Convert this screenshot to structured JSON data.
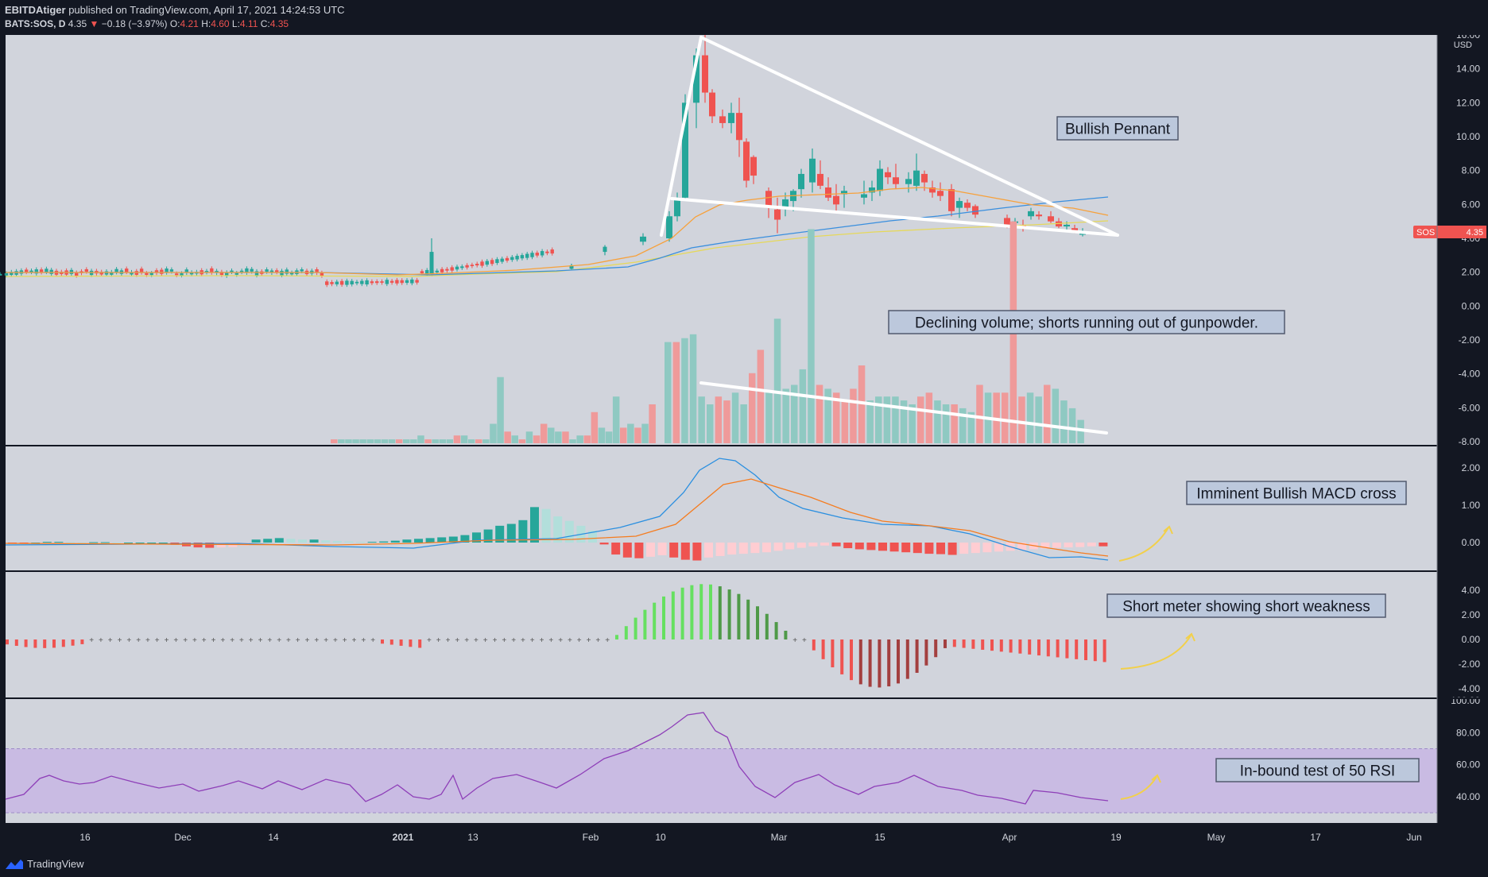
{
  "header": {
    "author": "EBITDAtiger",
    "published": "published on TradingView.com, April 17, 2021 14:24:53 UTC",
    "symbol_line": "BATS:SOS, D",
    "last": "4.35",
    "change": "−0.18 (−3.97%)",
    "o_label": "O:",
    "o": "4.21",
    "h_label": "H:",
    "h": "4.60",
    "l_label": "L:",
    "l": "4.11",
    "c_label": "C:",
    "c": "4.35"
  },
  "footer": {
    "brand": "TradingView"
  },
  "price_badge": {
    "symbol": "SOS",
    "value": "4.35"
  },
  "price_axis": {
    "currency": "USD",
    "ticks": [
      "16.00",
      "14.00",
      "12.00",
      "10.00",
      "8.00",
      "6.00",
      "4.00",
      "2.00",
      "0.00",
      "-2.00",
      "-4.00",
      "-6.00",
      "-8.00"
    ]
  },
  "macd_axis": {
    "ticks": [
      "2.00",
      "1.00",
      "0.00"
    ]
  },
  "meter_axis": {
    "ticks": [
      "4.00",
      "2.00",
      "0.00",
      "-2.00",
      "-4.00"
    ]
  },
  "rsi_axis": {
    "ticks": [
      "100.00",
      "80.00",
      "60.00",
      "40.00"
    ]
  },
  "time_axis": {
    "labels": [
      "16",
      "Dec",
      "14",
      "2021",
      "13",
      "Feb",
      "10",
      "Mar",
      "15",
      "Apr",
      "19",
      "May",
      "17",
      "Jun"
    ]
  },
  "annotations": {
    "pennant": "Bullish Pennant",
    "volume": "Declining volume; shorts running out of gunpowder.",
    "macd": "Imminent Bullish MACD cross",
    "meter": "Short meter showing short weakness",
    "rsi": "In-bound test of 50 RSI"
  },
  "colors": {
    "background": "#d1d4dc",
    "up": "#26a69a",
    "down": "#ef5350",
    "ma_fast": "#f7a13b",
    "ma_mid": "#3a8fde",
    "ma_slow": "#e6d85a",
    "macd_line": "#2a8fe0",
    "signal_line": "#f57c1f",
    "rsi_line": "#8e3fb8",
    "rsi_band": "#c9bbe3",
    "arrow": "#f2d04a"
  },
  "chart_data": [
    {
      "type": "candlestick",
      "name": "BATS:SOS, D",
      "ylim": [
        -8,
        16
      ],
      "ohlc_x": [
        "Nov 5",
        "Jan 5",
        "Jan 25",
        "Feb 3",
        "Feb 8",
        "Feb 11",
        "Feb 12",
        "Feb 16",
        "Feb 17",
        "Feb 18",
        "Feb 19",
        "Feb 22",
        "Feb 23",
        "Feb 24",
        "Feb 25",
        "Feb 26",
        "Mar 1",
        "Mar 2",
        "Mar 3",
        "Mar 4",
        "Mar 5",
        "Mar 8",
        "Mar 9",
        "Mar 10",
        "Mar 11",
        "Mar 12",
        "Mar 15",
        "Mar 16",
        "Mar 17",
        "Mar 18",
        "Mar 19",
        "Mar 22",
        "Mar 23",
        "Mar 24",
        "Mar 25",
        "Mar 26",
        "Mar 29",
        "Mar 30",
        "Mar 31",
        "Apr 1",
        "Apr 5",
        "Apr 6",
        "Apr 7",
        "Apr 8",
        "Apr 9",
        "Apr 12",
        "Apr 13",
        "Apr 14",
        "Apr 15",
        "Apr 16"
      ],
      "ohlc": [
        [
          1.9,
          2.0,
          1.8,
          1.9
        ],
        [
          1.9,
          4.0,
          1.9,
          3.2
        ],
        [
          2.2,
          2.5,
          2.1,
          2.4
        ],
        [
          3.2,
          3.6,
          3.0,
          3.5
        ],
        [
          3.8,
          4.3,
          3.6,
          4.1
        ],
        [
          4.0,
          5.6,
          3.8,
          5.3
        ],
        [
          5.3,
          6.7,
          5.0,
          6.4
        ],
        [
          6.4,
          12.5,
          6.2,
          12.0
        ],
        [
          12.0,
          15.2,
          10.5,
          14.8
        ],
        [
          14.8,
          16.0,
          12.0,
          12.6
        ],
        [
          12.6,
          12.8,
          10.8,
          11.2
        ],
        [
          11.2,
          11.6,
          10.5,
          10.8
        ],
        [
          10.8,
          12.0,
          10.2,
          11.4
        ],
        [
          11.4,
          12.3,
          8.8,
          9.8
        ],
        [
          9.7,
          9.9,
          7.0,
          7.4
        ],
        [
          8.8,
          8.9,
          7.2,
          7.7
        ],
        [
          6.8,
          7.0,
          5.2,
          5.8
        ],
        [
          5.7,
          6.4,
          4.3,
          5.1
        ],
        [
          5.8,
          6.7,
          5.3,
          6.3
        ],
        [
          6.2,
          6.9,
          5.6,
          6.8
        ],
        [
          6.9,
          8.1,
          6.4,
          7.8
        ],
        [
          7.3,
          9.3,
          6.7,
          8.7
        ],
        [
          7.8,
          8.6,
          6.9,
          7.1
        ],
        [
          7.0,
          7.6,
          6.2,
          6.4
        ],
        [
          6.5,
          7.2,
          5.5,
          6.0
        ],
        [
          6.6,
          7.1,
          5.8,
          6.8
        ],
        [
          6.4,
          7.4,
          6.0,
          6.6
        ],
        [
          6.7,
          7.4,
          6.2,
          7.0
        ],
        [
          6.8,
          8.6,
          6.5,
          8.1
        ],
        [
          7.9,
          8.2,
          7.2,
          7.6
        ],
        [
          7.6,
          8.4,
          6.9,
          7.2
        ],
        [
          7.2,
          7.9,
          6.7,
          7.5
        ],
        [
          7.1,
          9.0,
          6.8,
          8.0
        ],
        [
          7.8,
          8.0,
          6.8,
          7.3
        ],
        [
          7.0,
          7.4,
          6.4,
          6.7
        ],
        [
          6.8,
          7.3,
          6.2,
          6.5
        ],
        [
          6.9,
          7.2,
          5.3,
          5.6
        ],
        [
          5.8,
          6.4,
          5.2,
          6.2
        ],
        [
          6.1,
          6.3,
          5.6,
          5.8
        ],
        [
          5.9,
          6.0,
          5.2,
          5.4
        ],
        [
          5.2,
          5.4,
          4.6,
          4.8
        ],
        [
          5.0,
          5.2,
          4.8,
          5.0
        ],
        [
          4.8,
          5.1,
          4.4,
          4.7
        ],
        [
          5.3,
          5.8,
          5.1,
          5.6
        ],
        [
          5.4,
          5.6,
          5.1,
          5.3
        ],
        [
          5.3,
          5.6,
          4.9,
          5.0
        ],
        [
          5.0,
          5.2,
          4.6,
          4.7
        ],
        [
          4.7,
          5.0,
          4.5,
          4.8
        ],
        [
          4.6,
          4.8,
          4.3,
          4.4
        ],
        [
          4.21,
          4.6,
          4.11,
          4.35
        ]
      ]
    },
    {
      "type": "bar",
      "name": "Volume",
      "values": [
        1,
        1,
        1,
        1,
        1,
        1,
        1,
        1,
        1,
        1,
        1,
        1,
        2,
        1,
        1,
        1,
        1,
        2,
        2,
        1,
        1,
        1,
        5,
        17,
        3,
        2,
        1,
        3,
        2,
        5,
        4,
        3,
        3,
        1,
        2,
        2,
        8,
        4,
        3,
        12,
        4,
        5,
        4,
        5,
        10,
        26,
        26,
        27,
        28,
        12,
        10,
        12,
        11,
        13,
        10,
        18,
        24,
        13,
        32,
        14,
        15,
        19,
        55,
        15,
        14,
        13,
        11,
        14,
        20,
        11,
        12,
        12,
        12,
        11,
        10,
        12,
        13,
        11,
        10,
        10,
        9,
        8,
        15,
        13,
        13,
        13,
        57,
        12,
        13,
        12,
        15,
        14,
        11,
        9,
        6
      ]
    },
    {
      "type": "line",
      "name": "MACD",
      "ylim": [
        -0.5,
        2.5
      ],
      "histogram": [
        -0.02,
        -0.02,
        0.0,
        0.02,
        0.02,
        0.01,
        0.0,
        0.01,
        0.01,
        0.0,
        0.0,
        0.0,
        0.0,
        0.0,
        -0.06,
        -0.1,
        -0.13,
        -0.14,
        -0.13,
        -0.12,
        -0.08,
        0.08,
        0.1,
        0.12,
        0.1,
        0.08,
        0.08,
        0.06,
        0.04,
        0.03,
        0.02,
        0.02,
        0.03,
        0.05,
        0.08,
        0.1,
        0.12,
        0.14,
        0.16,
        0.2,
        0.27,
        0.35,
        0.45,
        0.5,
        0.6,
        0.95,
        0.9,
        0.7,
        0.58,
        0.45,
        0.32,
        -0.05,
        -0.32,
        -0.4,
        -0.42,
        -0.38,
        -0.34,
        -0.4,
        -0.46,
        -0.48,
        -0.4,
        -0.36,
        -0.32,
        -0.3,
        -0.28,
        -0.26,
        -0.22,
        -0.18,
        -0.14,
        -0.1,
        -0.08,
        -0.1,
        -0.15,
        -0.18,
        -0.2,
        -0.22,
        -0.24,
        -0.26,
        -0.28,
        -0.3,
        -0.31,
        -0.33,
        -0.3,
        -0.28,
        -0.26,
        -0.24,
        -0.22,
        -0.2,
        -0.18,
        -0.16,
        -0.14,
        -0.13,
        -0.12,
        -0.1,
        -0.1
      ]
    },
    {
      "type": "bar",
      "name": "Short meter",
      "ylim": [
        -5,
        5
      ]
    },
    {
      "type": "line",
      "name": "RSI",
      "ylim": [
        30,
        100
      ],
      "band": [
        30,
        70
      ]
    }
  ]
}
